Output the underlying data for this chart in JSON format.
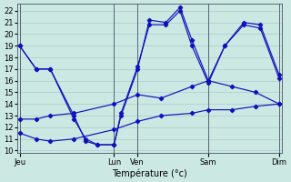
{
  "background_color": "#cce8e2",
  "grid_color": "#aaccca",
  "line_color": "#1111bb",
  "xlabel": "Température (°c)",
  "ylim": [
    9.8,
    22.6
  ],
  "yticks": [
    10,
    11,
    12,
    13,
    14,
    15,
    16,
    17,
    18,
    19,
    20,
    21,
    22
  ],
  "xlim": [
    -0.1,
    11.1
  ],
  "x_tick_positions": [
    0,
    4,
    5,
    8,
    11
  ],
  "x_tick_labels": [
    "Jeu",
    "Lun",
    "Ven",
    "Sam",
    "Dim"
  ],
  "series1_x": [
    0,
    0.7,
    1.3,
    2.3,
    2.8,
    3.3,
    4.0,
    4.3,
    5.0,
    5.5,
    6.2,
    6.8,
    7.3,
    8.0,
    8.7,
    9.5,
    10.2,
    11.0
  ],
  "series1_y": [
    19,
    17,
    17,
    12.7,
    11,
    10.5,
    10.5,
    13.0,
    17.0,
    21.2,
    21.0,
    22.3,
    19.5,
    16.0,
    19.0,
    21.0,
    20.8,
    16.5
  ],
  "series2_x": [
    0,
    0.7,
    1.3,
    2.3,
    2.8,
    3.3,
    4.0,
    4.3,
    5.0,
    5.5,
    6.2,
    6.8,
    7.3,
    8.0,
    8.7,
    9.5,
    10.2,
    11.0
  ],
  "series2_y": [
    19,
    17,
    17,
    13.0,
    10.8,
    10.5,
    10.5,
    13.2,
    17.2,
    20.8,
    20.8,
    22.0,
    19.0,
    15.8,
    19.0,
    20.8,
    20.5,
    16.2
  ],
  "series3_x": [
    0,
    0.7,
    1.3,
    2.3,
    4.0,
    5.0,
    6.0,
    7.3,
    8.0,
    9.0,
    10.0,
    11.0
  ],
  "series3_y": [
    12.7,
    12.7,
    13.0,
    13.2,
    14.0,
    14.8,
    14.5,
    15.5,
    16.0,
    15.5,
    15.0,
    14.0
  ],
  "series4_x": [
    0,
    0.7,
    1.3,
    2.3,
    4.0,
    5.0,
    6.0,
    7.3,
    8.0,
    9.0,
    10.0,
    11.0
  ],
  "series4_y": [
    11.5,
    11.0,
    10.8,
    11.0,
    11.8,
    12.5,
    13.0,
    13.2,
    13.5,
    13.5,
    13.8,
    14.0
  ]
}
